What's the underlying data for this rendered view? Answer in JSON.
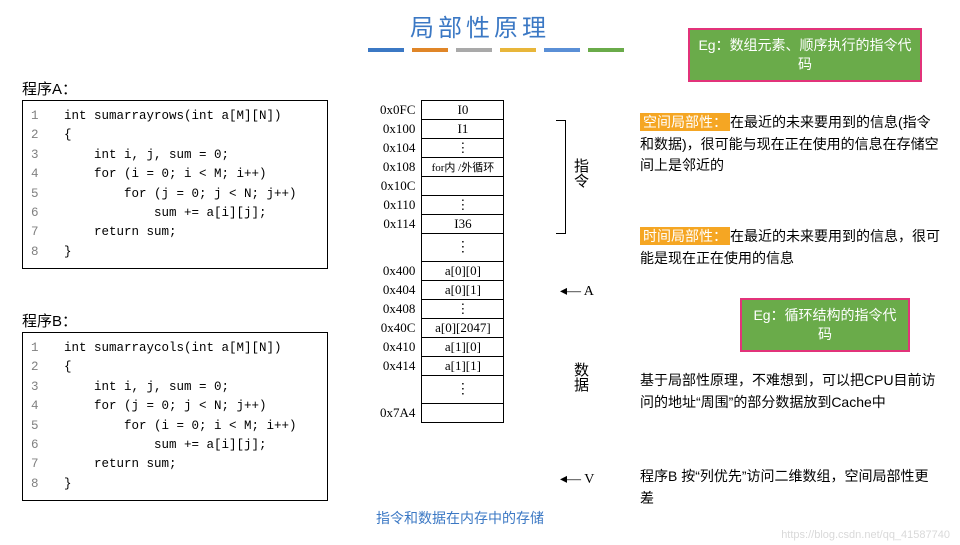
{
  "title": {
    "text": "局部性原理",
    "color": "#3b78c4"
  },
  "underline_colors": [
    "#3b78c4",
    "#e08628",
    "#a9a9a9",
    "#e8b63a",
    "#5a8fd6",
    "#6aab4a"
  ],
  "programA": {
    "label": "程序A：",
    "lines": [
      "int sumarrayrows(int a[M][N])",
      "{",
      "    int i, j, sum = 0;",
      "    for (i = 0; i < M; i++)",
      "        for (j = 0; j < N; j++)",
      "            sum += a[i][j];",
      "    return sum;",
      "}"
    ]
  },
  "programB": {
    "label": "程序B：",
    "lines": [
      "int sumarraycols(int a[M][N])",
      "{",
      "    int i, j, sum = 0;",
      "    for (j = 0; j < N; j++)",
      "        for (i = 0; i < M; i++)",
      "            sum += a[i][j];",
      "    return sum;",
      "}"
    ]
  },
  "memory": {
    "rows": [
      {
        "addr": "0x0FC",
        "val": "I0"
      },
      {
        "addr": "0x100",
        "val": "I1"
      },
      {
        "addr": "0x104",
        "val": "..."
      },
      {
        "addr": "0x108",
        "val": "for内 /外循环",
        "bold": true
      },
      {
        "addr": "0x10C",
        "val": ""
      },
      {
        "addr": "0x110",
        "val": "..."
      },
      {
        "addr": "0x114",
        "val": "I36"
      }
    ],
    "rows2": [
      {
        "addr": "0x400",
        "val": "a[0][0]"
      },
      {
        "addr": "0x404",
        "val": "a[0][1]"
      },
      {
        "addr": "0x408",
        "val": "..."
      },
      {
        "addr": "0x40C",
        "val": "a[0][2047]"
      },
      {
        "addr": "0x410",
        "val": "a[1][0]"
      },
      {
        "addr": "0x414",
        "val": "a[1][1]"
      }
    ],
    "last_addr": "0x7A4",
    "instr_label": "指令",
    "data_label": "数据",
    "A_label": "A",
    "V_label": "V",
    "caption": "指令和数据在内存中的存储",
    "caption_color": "#3b78c4"
  },
  "callout1": {
    "text_prefix": "Eg：",
    "text": "数组元素、顺序执行的指令代码",
    "bg": "#6aab4a",
    "border": "#e2337a"
  },
  "spatial": {
    "tag": "空间局部性：",
    "tag_bg": "#f5a623",
    "body": "在最近的未来要用到的信息(指令和数据)，很可能与现在正在使用的信息在存储空间上是邻近的"
  },
  "temporal": {
    "tag": "时间局部性：",
    "tag_bg": "#f5a623",
    "body": "在最近的未来要用到的信息，很可能是现在正在使用的信息"
  },
  "callout2": {
    "text_prefix": "Eg：",
    "text": "循环结构的指令代码",
    "bg": "#6aab4a",
    "border": "#e2337a"
  },
  "para3": "基于局部性原理，不难想到，可以把CPU目前访问的地址“周围”的部分数据放到Cache中",
  "para4": "程序B 按“列优先”访问二维数组，空间局部性更差",
  "watermark": "https://blog.csdn.net/qq_41587740"
}
